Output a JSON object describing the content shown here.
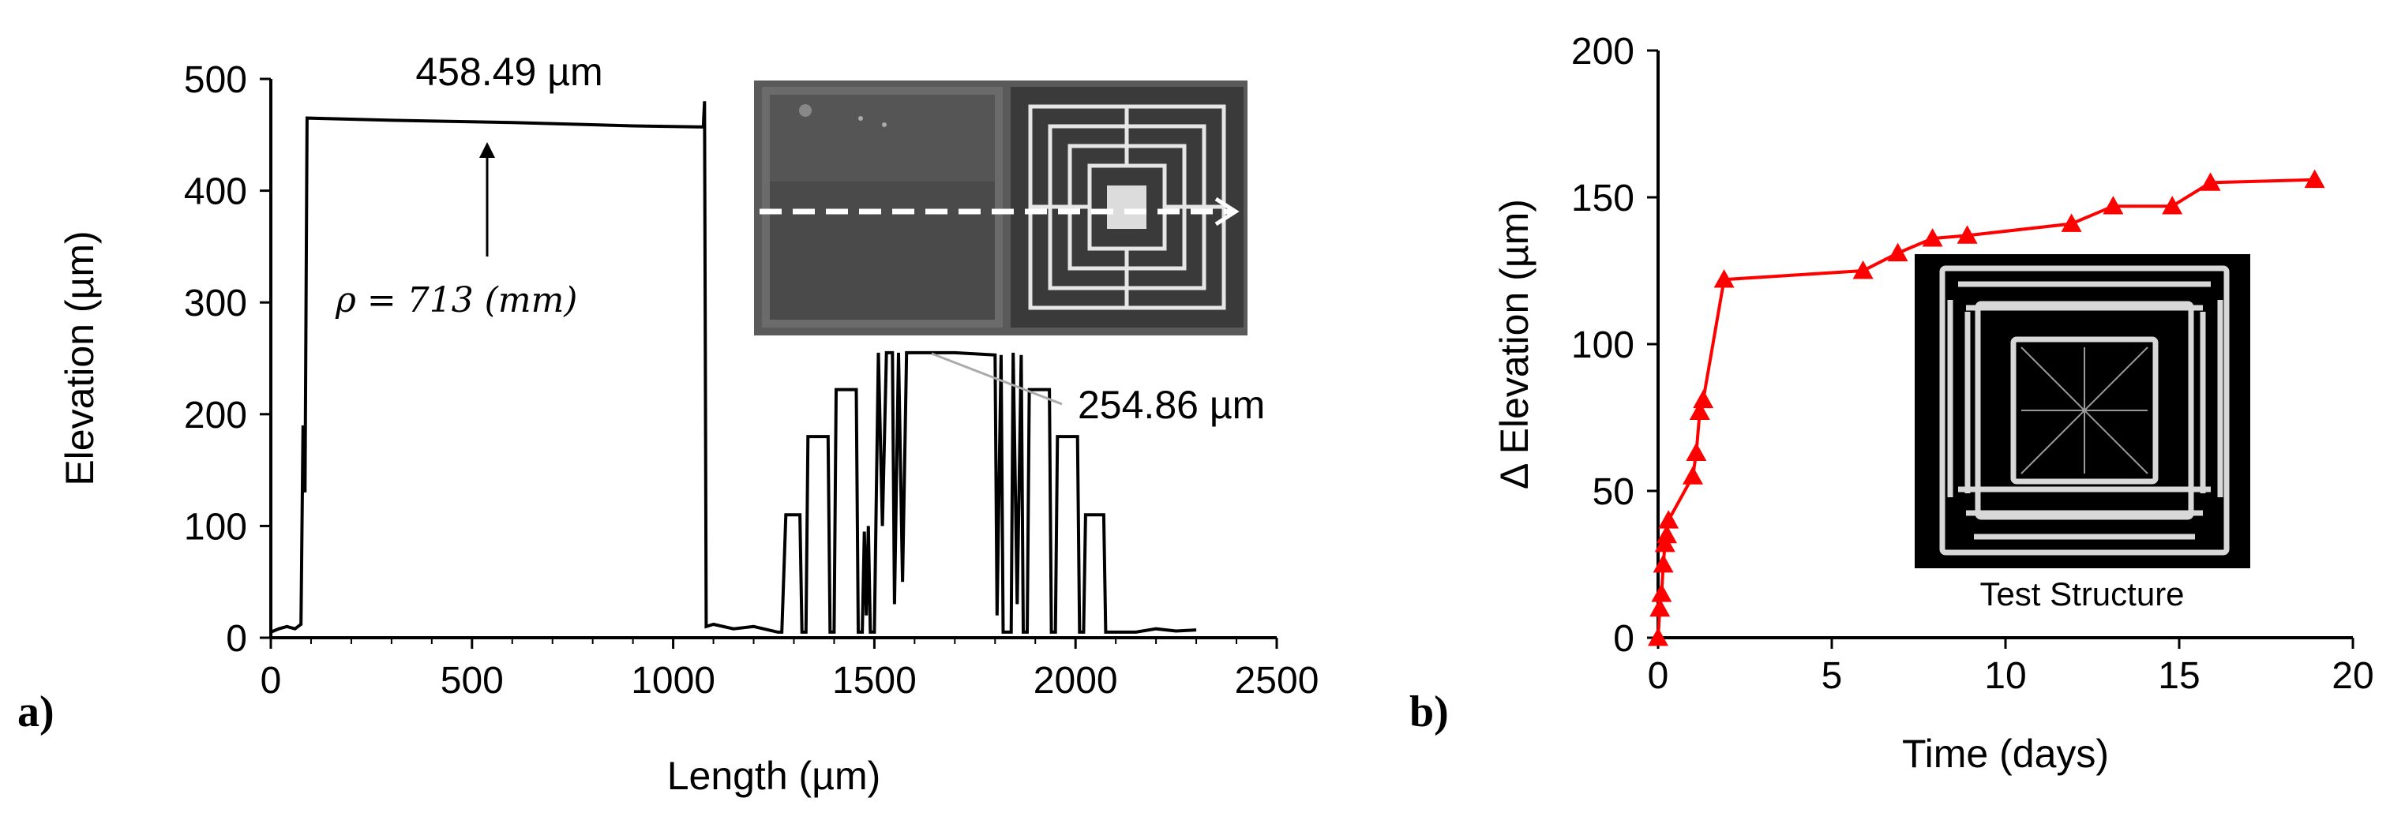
{
  "chart_data": [
    {
      "panel_label": "a)",
      "type": "line",
      "xlabel": "Length (µm)",
      "ylabel": "Elevation (µm)",
      "xlim": [
        0,
        2500
      ],
      "ylim": [
        0,
        500
      ],
      "xticks": [
        0,
        500,
        1000,
        1500,
        2000,
        2500
      ],
      "yticks": [
        0,
        100,
        200,
        300,
        400,
        500
      ],
      "grid": false,
      "legend": "none",
      "series": [
        {
          "color": "#000000",
          "points": [
            [
              0,
              5
            ],
            [
              20,
              8
            ],
            [
              40,
              10
            ],
            [
              60,
              8
            ],
            [
              75,
              12
            ],
            [
              80,
              190
            ],
            [
              85,
              130
            ],
            [
              90,
              465
            ],
            [
              300,
              463
            ],
            [
              600,
              461
            ],
            [
              900,
              458
            ],
            [
              1075,
              457
            ],
            [
              1078,
              480
            ],
            [
              1082,
              10
            ],
            [
              1100,
              12
            ],
            [
              1150,
              8
            ],
            [
              1200,
              10
            ],
            [
              1260,
              5
            ],
            [
              1270,
              5
            ],
            [
              1280,
              110
            ],
            [
              1315,
              110
            ],
            [
              1320,
              5
            ],
            [
              1330,
              5
            ],
            [
              1335,
              180
            ],
            [
              1385,
              180
            ],
            [
              1390,
              5
            ],
            [
              1400,
              5
            ],
            [
              1405,
              222
            ],
            [
              1455,
              222
            ],
            [
              1460,
              5
            ],
            [
              1470,
              5
            ],
            [
              1475,
              95
            ],
            [
              1480,
              20
            ],
            [
              1485,
              100
            ],
            [
              1490,
              5
            ],
            [
              1500,
              5
            ],
            [
              1510,
              255
            ],
            [
              1520,
              100
            ],
            [
              1530,
              255
            ],
            [
              1545,
              255
            ],
            [
              1550,
              30
            ],
            [
              1560,
              255
            ],
            [
              1570,
              50
            ],
            [
              1580,
              255
            ],
            [
              1700,
              255
            ],
            [
              1800,
              253
            ],
            [
              1805,
              20
            ],
            [
              1815,
              253
            ],
            [
              1820,
              5
            ],
            [
              1840,
              5
            ],
            [
              1845,
              255
            ],
            [
              1855,
              30
            ],
            [
              1865,
              253
            ],
            [
              1870,
              5
            ],
            [
              1880,
              5
            ],
            [
              1885,
              222
            ],
            [
              1935,
              222
            ],
            [
              1940,
              5
            ],
            [
              1950,
              5
            ],
            [
              1955,
              180
            ],
            [
              2005,
              180
            ],
            [
              2010,
              5
            ],
            [
              2020,
              5
            ],
            [
              2025,
              110
            ],
            [
              2070,
              110
            ],
            [
              2075,
              5
            ],
            [
              2150,
              5
            ],
            [
              2200,
              8
            ],
            [
              2250,
              6
            ],
            [
              2300,
              7
            ]
          ]
        }
      ],
      "annotations": {
        "top_value": "458.49 µm",
        "rho": "ρ = 713 (mm)",
        "spring_value": "254.86 µm"
      }
    },
    {
      "panel_label": "b)",
      "type": "line",
      "xlabel": "Time (days)",
      "ylabel": "Δ Elevation (µm)",
      "xlim": [
        0,
        20
      ],
      "ylim": [
        0,
        200
      ],
      "xticks": [
        0,
        5,
        10,
        15,
        20
      ],
      "yticks": [
        0,
        50,
        100,
        150,
        200
      ],
      "grid": false,
      "legend": "none",
      "series": [
        {
          "color": "#ff0000",
          "marker": "triangle",
          "x": [
            0.0,
            0.05,
            0.1,
            0.15,
            0.2,
            0.25,
            0.3,
            1.0,
            1.1,
            1.2,
            1.3,
            1.9,
            5.9,
            6.9,
            7.9,
            8.9,
            11.9,
            13.1,
            14.8,
            15.9,
            18.9
          ],
          "y": [
            0,
            10,
            15,
            25,
            32,
            35,
            40,
            55,
            63,
            77,
            81,
            122,
            125,
            131,
            136,
            137,
            141,
            147,
            147,
            155,
            156
          ]
        }
      ],
      "inset_caption": "Test Structure"
    }
  ]
}
